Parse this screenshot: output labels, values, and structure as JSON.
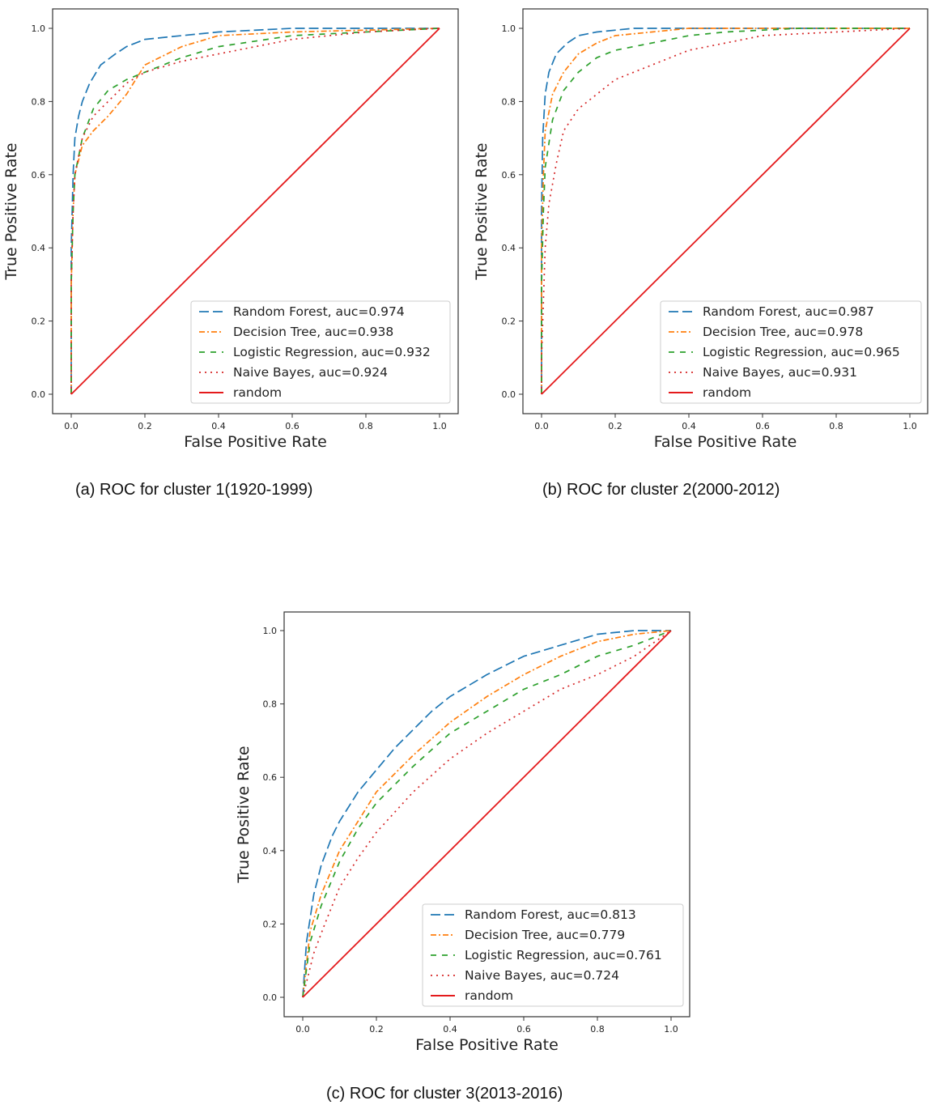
{
  "colors": {
    "random_forest": "#1f77b4",
    "decision_tree": "#ff7f0e",
    "logistic_regression": "#2ca02c",
    "naive_bayes": "#d62728",
    "random": "#e41a1c",
    "axes": "#333333"
  },
  "chart_data": [
    {
      "type": "line",
      "id": "a",
      "caption": "(a) ROC for cluster 1(1920-1999)",
      "xlabel": "False Positive Rate",
      "ylabel": "True Positive Rate",
      "xlim": [
        0,
        1
      ],
      "ylim": [
        0,
        1
      ],
      "xticks": [
        "0.0",
        "0.2",
        "0.4",
        "0.6",
        "0.8",
        "1.0"
      ],
      "yticks": [
        "0.0",
        "0.2",
        "0.4",
        "0.6",
        "0.8",
        "1.0"
      ],
      "grid": false,
      "legend_position": "lower-right",
      "series": [
        {
          "name": "Random Forest, auc=0.974",
          "style": "longdash",
          "color_key": "random_forest",
          "points": [
            [
              0,
              0
            ],
            [
              0,
              0.4
            ],
            [
              0.005,
              0.6
            ],
            [
              0.01,
              0.7
            ],
            [
              0.02,
              0.76
            ],
            [
              0.03,
              0.8
            ],
            [
              0.05,
              0.85
            ],
            [
              0.08,
              0.9
            ],
            [
              0.12,
              0.93
            ],
            [
              0.15,
              0.95
            ],
            [
              0.2,
              0.97
            ],
            [
              0.3,
              0.98
            ],
            [
              0.4,
              0.99
            ],
            [
              0.6,
              1.0
            ],
            [
              1,
              1
            ]
          ]
        },
        {
          "name": "Decision Tree, auc=0.938",
          "style": "dotdash",
          "color_key": "decision_tree",
          "points": [
            [
              0,
              0
            ],
            [
              0,
              0.3
            ],
            [
              0.005,
              0.5
            ],
            [
              0.01,
              0.6
            ],
            [
              0.03,
              0.68
            ],
            [
              0.06,
              0.72
            ],
            [
              0.1,
              0.76
            ],
            [
              0.15,
              0.82
            ],
            [
              0.2,
              0.9
            ],
            [
              0.3,
              0.95
            ],
            [
              0.4,
              0.98
            ],
            [
              0.6,
              0.99
            ],
            [
              1,
              1
            ]
          ]
        },
        {
          "name": "Logistic Regression, auc=0.932",
          "style": "dash",
          "color_key": "logistic_regression",
          "points": [
            [
              0,
              0
            ],
            [
              0,
              0.3
            ],
            [
              0.005,
              0.5
            ],
            [
              0.01,
              0.6
            ],
            [
              0.03,
              0.7
            ],
            [
              0.06,
              0.78
            ],
            [
              0.1,
              0.83
            ],
            [
              0.15,
              0.86
            ],
            [
              0.2,
              0.88
            ],
            [
              0.3,
              0.92
            ],
            [
              0.4,
              0.95
            ],
            [
              0.6,
              0.98
            ],
            [
              1,
              1
            ]
          ]
        },
        {
          "name": "Naive Bayes, auc=0.924",
          "style": "dot",
          "color_key": "naive_bayes",
          "points": [
            [
              0,
              0
            ],
            [
              0,
              0.3
            ],
            [
              0.005,
              0.5
            ],
            [
              0.01,
              0.6
            ],
            [
              0.03,
              0.7
            ],
            [
              0.06,
              0.76
            ],
            [
              0.1,
              0.8
            ],
            [
              0.15,
              0.85
            ],
            [
              0.2,
              0.88
            ],
            [
              0.3,
              0.91
            ],
            [
              0.4,
              0.93
            ],
            [
              0.5,
              0.95
            ],
            [
              0.6,
              0.97
            ],
            [
              0.8,
              0.99
            ],
            [
              1,
              1
            ]
          ]
        },
        {
          "name": "random",
          "style": "solid",
          "color_key": "random",
          "points": [
            [
              0,
              0
            ],
            [
              1,
              1
            ]
          ]
        }
      ]
    },
    {
      "type": "line",
      "id": "b",
      "caption": "(b) ROC for cluster 2(2000-2012)",
      "xlabel": "False Positive Rate",
      "ylabel": "True Positive Rate",
      "xlim": [
        0,
        1
      ],
      "ylim": [
        0,
        1
      ],
      "xticks": [
        "0.0",
        "0.2",
        "0.4",
        "0.6",
        "0.8",
        "1.0"
      ],
      "yticks": [
        "0.0",
        "0.2",
        "0.4",
        "0.6",
        "0.8",
        "1.0"
      ],
      "grid": false,
      "legend_position": "lower-right",
      "series": [
        {
          "name": "Random Forest, auc=0.987",
          "style": "longdash",
          "color_key": "random_forest",
          "points": [
            [
              0,
              0
            ],
            [
              0,
              0.5
            ],
            [
              0.003,
              0.7
            ],
            [
              0.01,
              0.82
            ],
            [
              0.02,
              0.88
            ],
            [
              0.04,
              0.93
            ],
            [
              0.07,
              0.96
            ],
            [
              0.1,
              0.98
            ],
            [
              0.15,
              0.99
            ],
            [
              0.25,
              1.0
            ],
            [
              1,
              1
            ]
          ]
        },
        {
          "name": "Decision Tree, auc=0.978",
          "style": "dotdash",
          "color_key": "decision_tree",
          "points": [
            [
              0,
              0
            ],
            [
              0,
              0.4
            ],
            [
              0.005,
              0.6
            ],
            [
              0.01,
              0.72
            ],
            [
              0.03,
              0.82
            ],
            [
              0.06,
              0.88
            ],
            [
              0.1,
              0.93
            ],
            [
              0.15,
              0.96
            ],
            [
              0.2,
              0.98
            ],
            [
              0.3,
              0.99
            ],
            [
              0.4,
              1.0
            ],
            [
              1,
              1
            ]
          ]
        },
        {
          "name": "Logistic Regression, auc=0.965",
          "style": "dash",
          "color_key": "logistic_regression",
          "points": [
            [
              0,
              0
            ],
            [
              0,
              0.3
            ],
            [
              0.005,
              0.5
            ],
            [
              0.01,
              0.62
            ],
            [
              0.03,
              0.75
            ],
            [
              0.06,
              0.83
            ],
            [
              0.1,
              0.88
            ],
            [
              0.15,
              0.92
            ],
            [
              0.2,
              0.94
            ],
            [
              0.3,
              0.96
            ],
            [
              0.4,
              0.98
            ],
            [
              0.5,
              0.99
            ],
            [
              0.7,
              1.0
            ],
            [
              1,
              1
            ]
          ]
        },
        {
          "name": "Naive Bayes, auc=0.931",
          "style": "dot",
          "color_key": "naive_bayes",
          "points": [
            [
              0,
              0
            ],
            [
              0,
              0.1
            ],
            [
              0.01,
              0.4
            ],
            [
              0.02,
              0.52
            ],
            [
              0.04,
              0.63
            ],
            [
              0.06,
              0.72
            ],
            [
              0.1,
              0.78
            ],
            [
              0.15,
              0.82
            ],
            [
              0.2,
              0.86
            ],
            [
              0.3,
              0.9
            ],
            [
              0.4,
              0.94
            ],
            [
              0.5,
              0.96
            ],
            [
              0.6,
              0.98
            ],
            [
              0.8,
              0.99
            ],
            [
              1,
              1
            ]
          ]
        },
        {
          "name": "random",
          "style": "solid",
          "color_key": "random",
          "points": [
            [
              0,
              0
            ],
            [
              1,
              1
            ]
          ]
        }
      ]
    },
    {
      "type": "line",
      "id": "c",
      "caption": "(c) ROC for cluster 3(2013-2016)",
      "xlabel": "False Positive Rate",
      "ylabel": "True Positive Rate",
      "xlim": [
        0,
        1
      ],
      "ylim": [
        0,
        1
      ],
      "xticks": [
        "0.0",
        "0.2",
        "0.4",
        "0.6",
        "0.8",
        "1.0"
      ],
      "yticks": [
        "0.0",
        "0.2",
        "0.4",
        "0.6",
        "0.8",
        "1.0"
      ],
      "grid": false,
      "legend_position": "lower-right",
      "series": [
        {
          "name": "Random Forest, auc=0.813",
          "style": "longdash",
          "color_key": "random_forest",
          "points": [
            [
              0,
              0
            ],
            [
              0.01,
              0.15
            ],
            [
              0.03,
              0.28
            ],
            [
              0.05,
              0.36
            ],
            [
              0.08,
              0.44
            ],
            [
              0.1,
              0.48
            ],
            [
              0.15,
              0.56
            ],
            [
              0.2,
              0.62
            ],
            [
              0.25,
              0.68
            ],
            [
              0.3,
              0.73
            ],
            [
              0.35,
              0.78
            ],
            [
              0.4,
              0.82
            ],
            [
              0.5,
              0.88
            ],
            [
              0.6,
              0.93
            ],
            [
              0.7,
              0.96
            ],
            [
              0.8,
              0.99
            ],
            [
              0.9,
              1.0
            ],
            [
              1,
              1
            ]
          ]
        },
        {
          "name": "Decision Tree, auc=0.779",
          "style": "dotdash",
          "color_key": "decision_tree",
          "points": [
            [
              0,
              0
            ],
            [
              0.02,
              0.18
            ],
            [
              0.05,
              0.28
            ],
            [
              0.1,
              0.4
            ],
            [
              0.15,
              0.48
            ],
            [
              0.2,
              0.56
            ],
            [
              0.3,
              0.66
            ],
            [
              0.4,
              0.75
            ],
            [
              0.5,
              0.82
            ],
            [
              0.6,
              0.88
            ],
            [
              0.7,
              0.93
            ],
            [
              0.8,
              0.97
            ],
            [
              0.9,
              0.99
            ],
            [
              1,
              1
            ]
          ]
        },
        {
          "name": "Logistic Regression, auc=0.761",
          "style": "dash",
          "color_key": "logistic_regression",
          "points": [
            [
              0,
              0
            ],
            [
              0.02,
              0.15
            ],
            [
              0.05,
              0.25
            ],
            [
              0.1,
              0.37
            ],
            [
              0.15,
              0.46
            ],
            [
              0.2,
              0.53
            ],
            [
              0.3,
              0.63
            ],
            [
              0.4,
              0.72
            ],
            [
              0.5,
              0.78
            ],
            [
              0.6,
              0.84
            ],
            [
              0.7,
              0.88
            ],
            [
              0.8,
              0.93
            ],
            [
              0.9,
              0.96
            ],
            [
              1,
              1
            ]
          ]
        },
        {
          "name": "Naive Bayes, auc=0.724",
          "style": "dot",
          "color_key": "naive_bayes",
          "points": [
            [
              0,
              0
            ],
            [
              0.03,
              0.12
            ],
            [
              0.06,
              0.2
            ],
            [
              0.1,
              0.3
            ],
            [
              0.15,
              0.38
            ],
            [
              0.2,
              0.45
            ],
            [
              0.3,
              0.56
            ],
            [
              0.4,
              0.65
            ],
            [
              0.5,
              0.72
            ],
            [
              0.6,
              0.78
            ],
            [
              0.7,
              0.84
            ],
            [
              0.8,
              0.88
            ],
            [
              0.9,
              0.93
            ],
            [
              1,
              1
            ]
          ]
        },
        {
          "name": "random",
          "style": "solid",
          "color_key": "random",
          "points": [
            [
              0,
              0
            ],
            [
              1,
              1
            ]
          ]
        }
      ]
    }
  ]
}
